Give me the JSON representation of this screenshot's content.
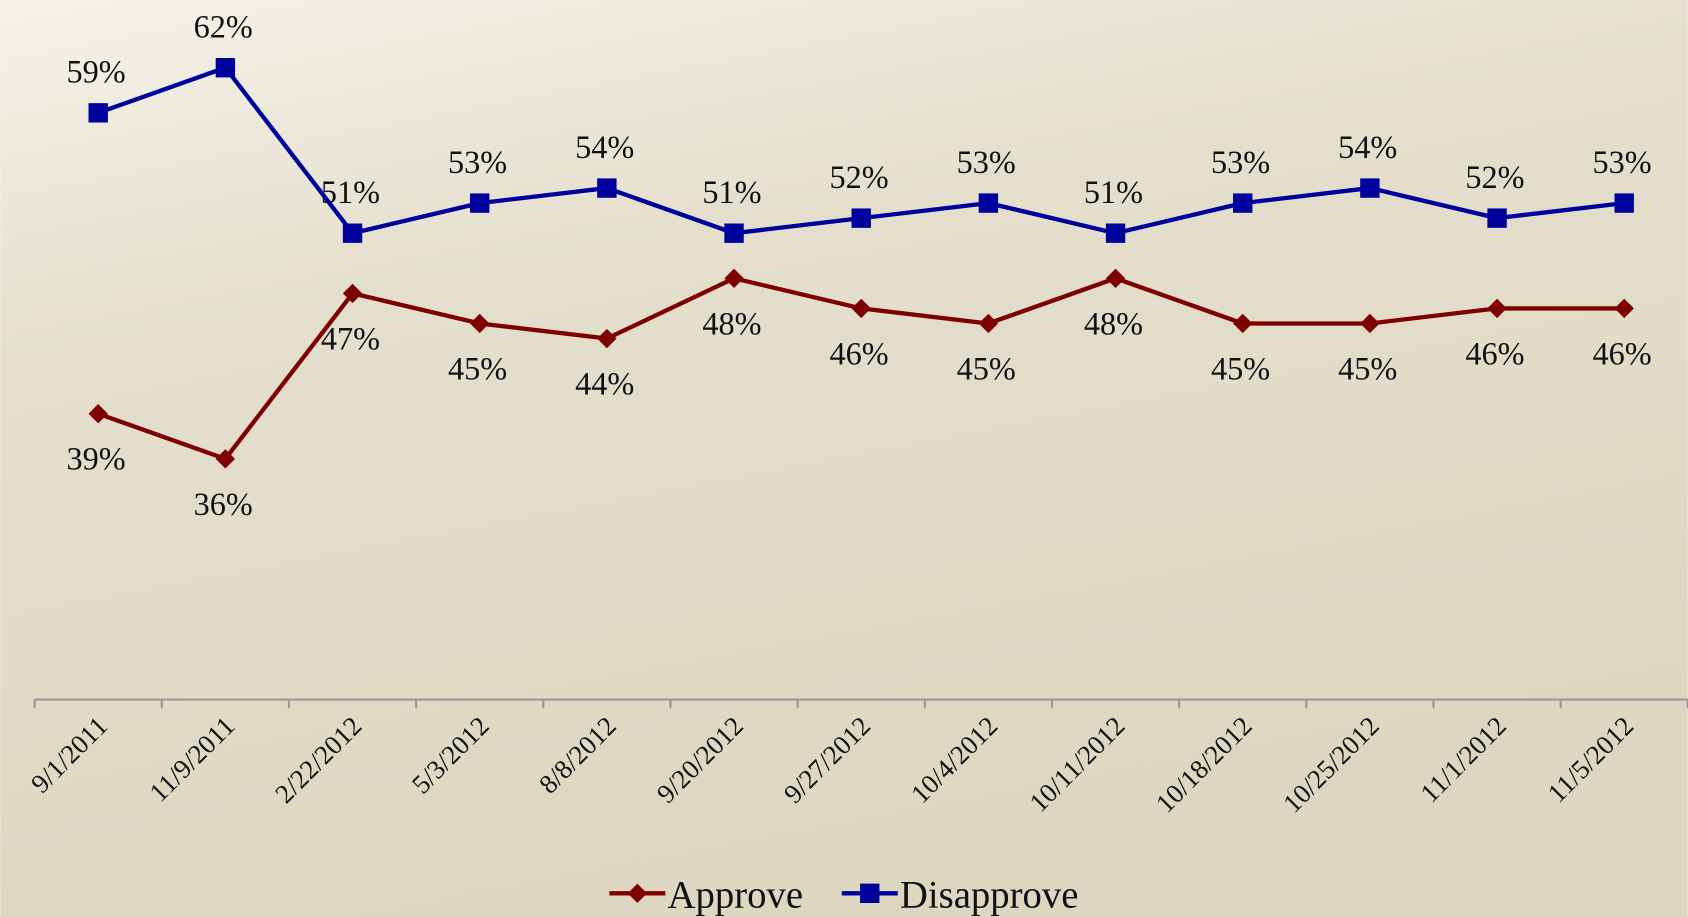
{
  "chart_data": {
    "type": "line",
    "categories": [
      "9/1/2011",
      "11/9/2011",
      "2/22/2012",
      "5/3/2012",
      "8/8/2012",
      "9/20/2012",
      "9/27/2012",
      "10/4/2012",
      "10/11/2012",
      "10/18/2012",
      "10/25/2012",
      "11/1/2012",
      "11/5/2012"
    ],
    "series": [
      {
        "name": "Approve",
        "color": "#7f0000",
        "marker": "diamond",
        "values": [
          39,
          36,
          47,
          45,
          44,
          48,
          46,
          45,
          48,
          45,
          45,
          46,
          46
        ],
        "value_labels": [
          "39%",
          "36%",
          "47%",
          "45%",
          "44%",
          "48%",
          "46%",
          "45%",
          "48%",
          "45%",
          "45%",
          "46%",
          "46%"
        ]
      },
      {
        "name": "Disapprove",
        "color": "#00009c",
        "marker": "square",
        "values": [
          59,
          62,
          51,
          53,
          54,
          51,
          52,
          53,
          51,
          53,
          54,
          52,
          53
        ],
        "value_labels": [
          "59%",
          "62%",
          "51%",
          "53%",
          "54%",
          "51%",
          "52%",
          "53%",
          "51%",
          "53%",
          "54%",
          "52%",
          "53%"
        ]
      }
    ],
    "ylim": [
      20,
      66.5
    ],
    "legend": "bottom"
  }
}
